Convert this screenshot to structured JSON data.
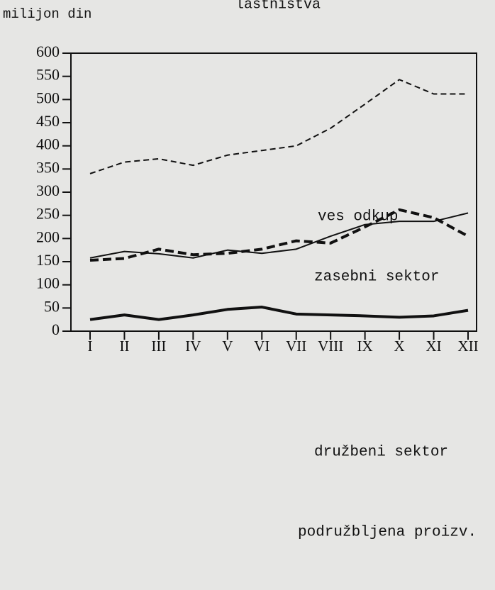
{
  "chart_data": {
    "type": "line",
    "title": "lastništva",
    "y_label": "milijon din",
    "categories": [
      "I",
      "II",
      "III",
      "IV",
      "V",
      "VI",
      "VII",
      "VIII",
      "IX",
      "X",
      "XI",
      "XII"
    ],
    "series": [
      {
        "name": "ves odkup",
        "color": "#111111",
        "dashed": true,
        "thick": false,
        "values": [
          340,
          365,
          372,
          358,
          380,
          390,
          400,
          438,
          490,
          543,
          512,
          512
        ]
      },
      {
        "name": "zasebni sektor",
        "color": "#111111",
        "dashed": true,
        "thick": true,
        "values": [
          153,
          157,
          177,
          165,
          168,
          177,
          195,
          190,
          225,
          262,
          245,
          205
        ]
      },
      {
        "name": "družbeni sektor",
        "color": "#111111",
        "dashed": false,
        "thick": false,
        "values": [
          158,
          172,
          167,
          158,
          175,
          168,
          177,
          205,
          230,
          237,
          237,
          255
        ]
      },
      {
        "name": "podružbljena proizv.",
        "color": "#111111",
        "dashed": false,
        "thick": true,
        "values": [
          25,
          35,
          25,
          35,
          47,
          52,
          37,
          35,
          33,
          30,
          33,
          45
        ]
      }
    ],
    "ylim": [
      0,
      600
    ],
    "yticks": [
      0,
      50,
      100,
      150,
      200,
      250,
      300,
      350,
      400,
      450,
      500,
      550,
      600
    ],
    "grid": false
  }
}
